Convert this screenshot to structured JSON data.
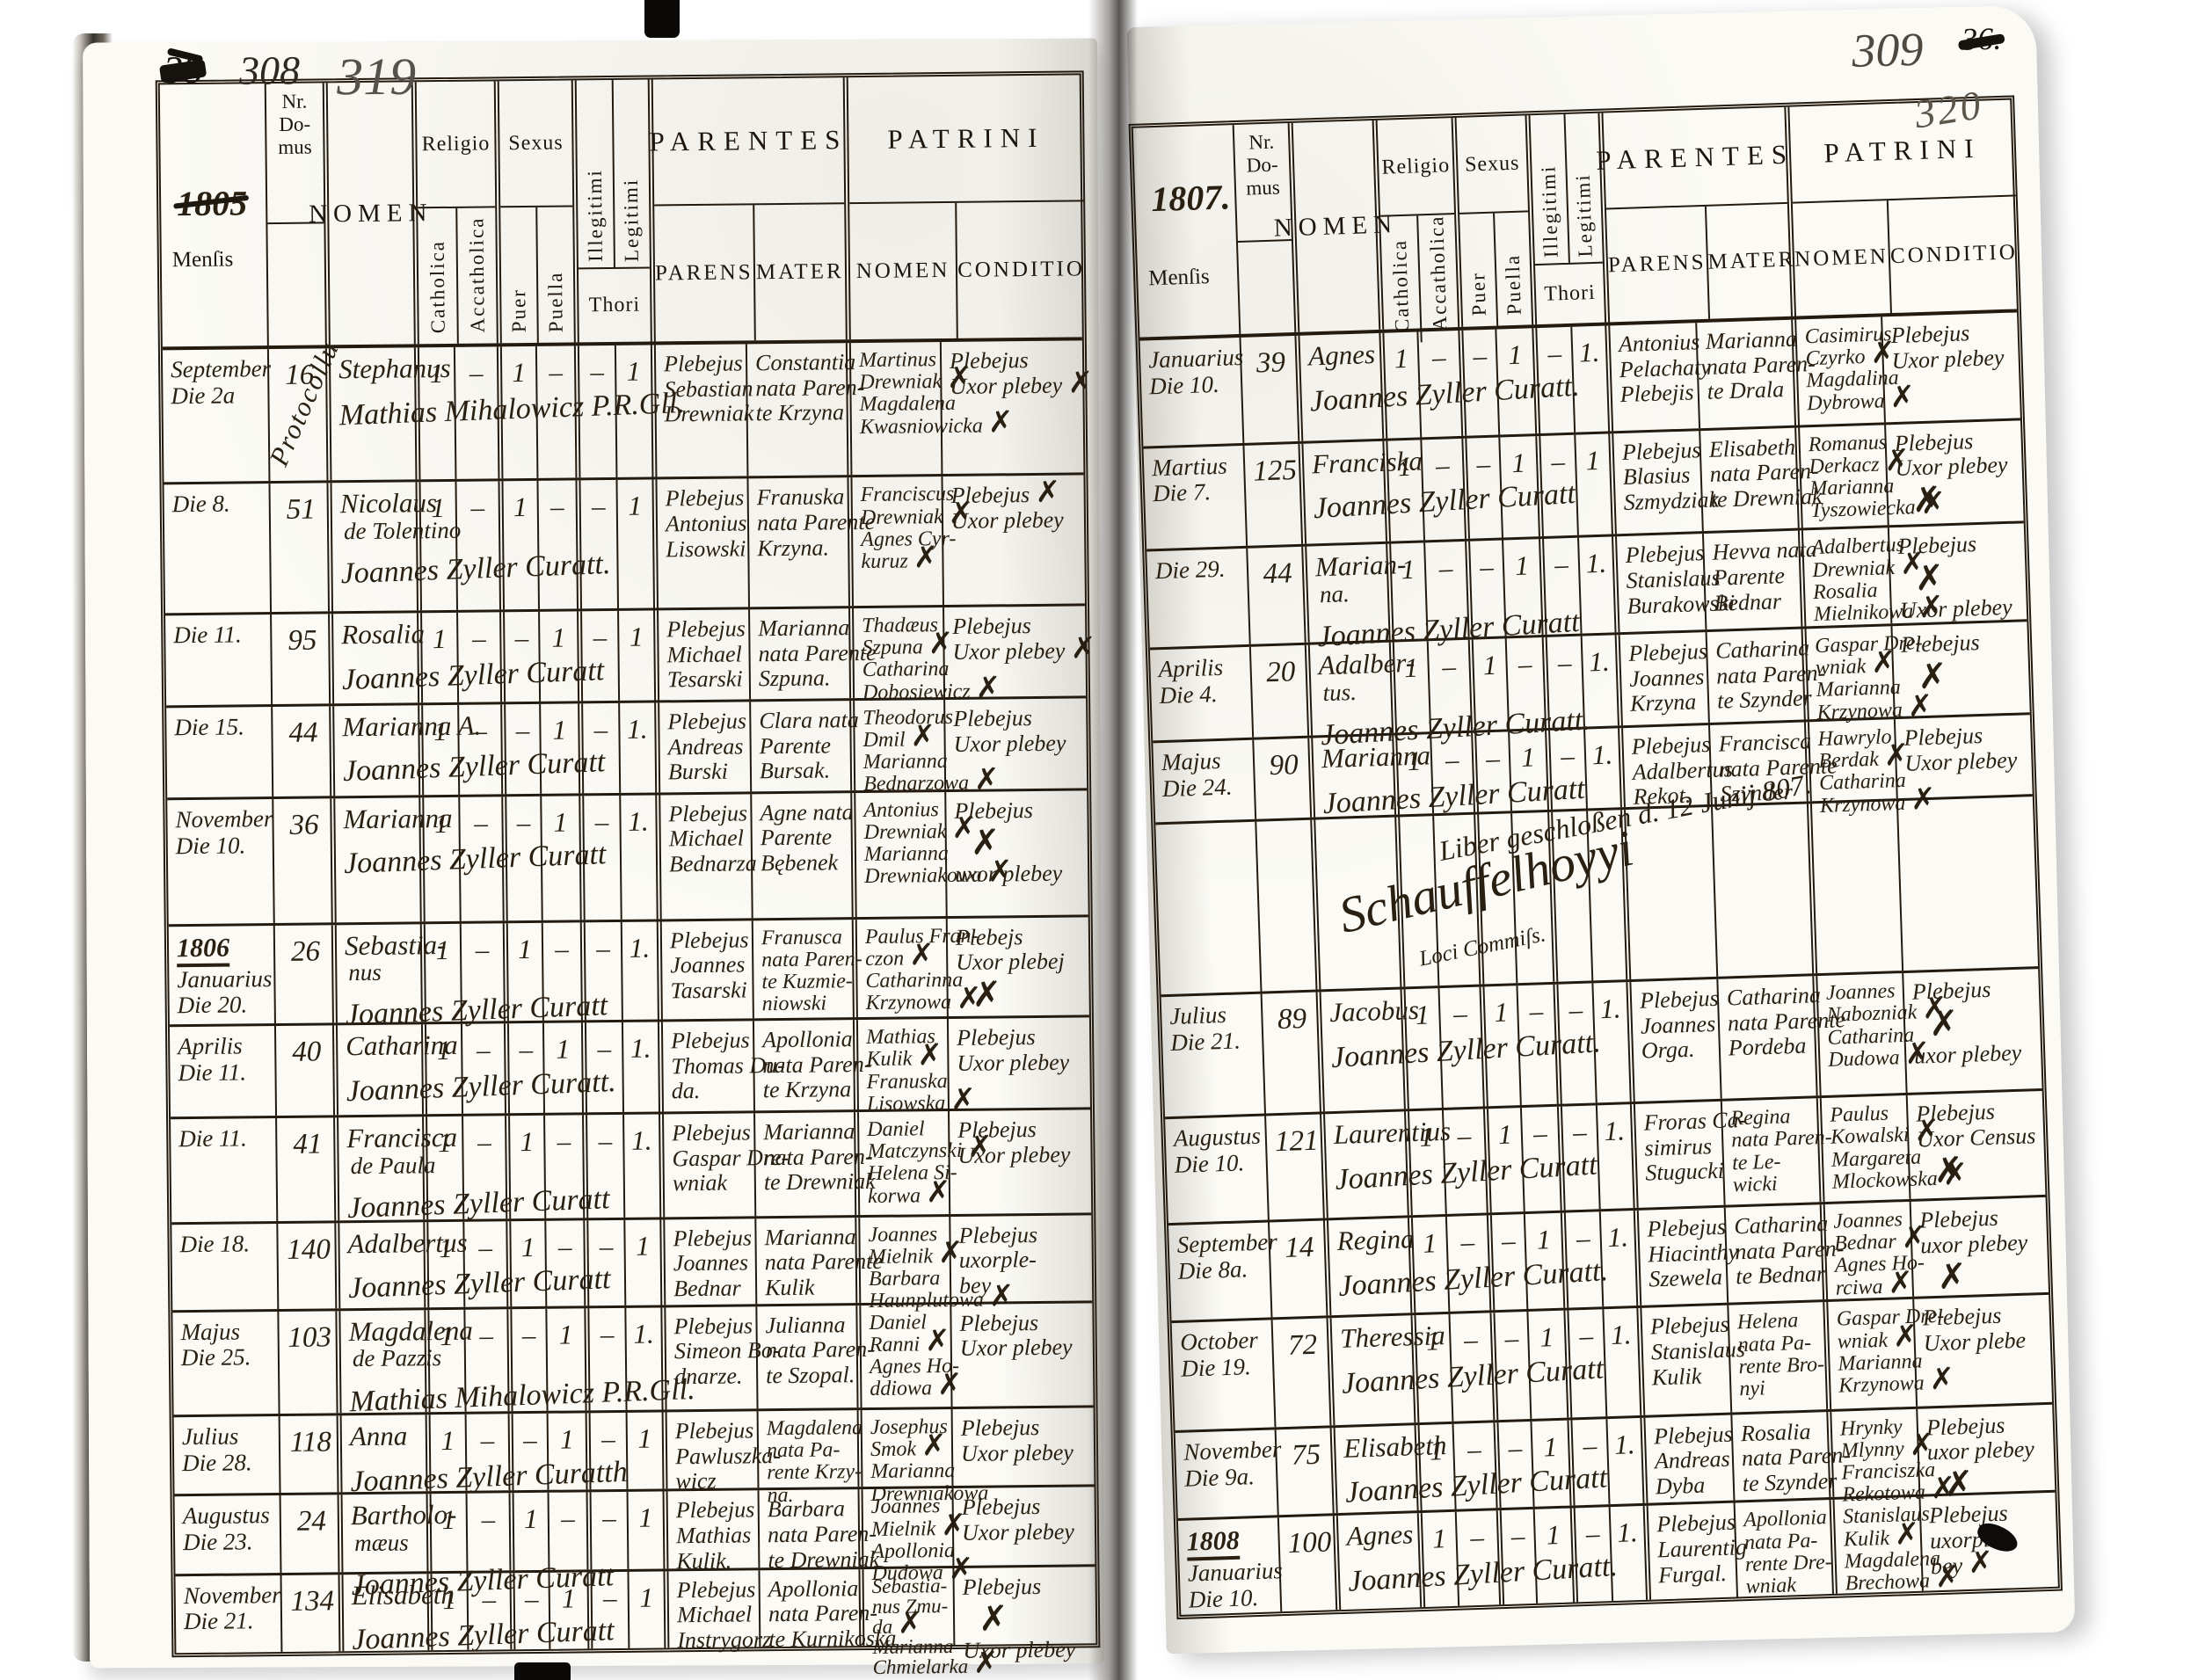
{
  "header_labels": {
    "mensis": "Menſis",
    "nr_domus_lines": [
      "Nr.",
      "Do-",
      "mus"
    ],
    "nomen": "NOMEN",
    "religio": "Religio",
    "catholica": "Catholica",
    "accatholica": "Accatholica",
    "sexus": "Sexus",
    "puer": "Puer",
    "puella": "Puella",
    "illegitimi": "Illegitimi",
    "legitimi": "Legitimi",
    "thori": "Thori",
    "parentes": "PARENTES",
    "parens": "PARENS",
    "mater": "MATER",
    "patrini": "PATRINI",
    "patrini_nomen": "NOMEN",
    "conditio": "CONDITIO"
  },
  "left_page": {
    "year": "1805",
    "column_annotation": "Protocollu",
    "folio_notes": [
      {
        "text": "38",
        "struck": true,
        "size": 44,
        "color": "#17130d"
      },
      {
        "text": "308",
        "struck": false,
        "size": 46,
        "color": "#2e2821"
      },
      {
        "text": "319",
        "struck": false,
        "size": 60,
        "color": "#56514a"
      }
    ],
    "rows": [
      {
        "mensis": [
          "September",
          "Die 2a"
        ],
        "domus": "16",
        "name": "Stephanus",
        "name2": "",
        "curate": "Mathias Mihalowicz P.R.Gll.",
        "marks": [
          "1",
          "–",
          "1",
          "–",
          "–",
          "1"
        ],
        "parens": [
          "Plebejus",
          "Sebastian",
          "Drewniak"
        ],
        "mater": [
          "Constantia",
          "nata Paren-",
          "te Krzyna"
        ],
        "patrini": [
          "Martinus",
          "Drewniak ✗",
          "Magdalena",
          "Kwasniowicka ✗"
        ],
        "conditio": [
          "Plebejus",
          "Uxor plebey ✗"
        ]
      },
      {
        "mensis": [
          "Die 8."
        ],
        "domus": "51",
        "name": "Nicolaus",
        "name2": "de Tolentino",
        "curate": "Joannes Zyller Curatt.",
        "marks": [
          "1",
          "–",
          "1",
          "–",
          "–",
          "1"
        ],
        "parens": [
          "Plebejus",
          "Antonius",
          "Lisowski"
        ],
        "mater": [
          "Franuska",
          "nata Parente",
          "Krzyna."
        ],
        "patrini": [
          "Franciscus",
          "Drewniak ✗",
          "Agnes Cyr-",
          "kuruz ✗"
        ],
        "conditio": [
          "Plebejus ✗",
          "Uxor plebey"
        ]
      },
      {
        "mensis": [
          "Die 11."
        ],
        "domus": "95",
        "name": "Rosalia",
        "name2": "",
        "curate": "Joannes Zyller Curatt",
        "marks": [
          "1",
          "–",
          "–",
          "1",
          "–",
          "1"
        ],
        "parens": [
          "Plebejus",
          "Michael",
          "Tesarski"
        ],
        "mater": [
          "Marianna",
          "nata Parente",
          "Szpuna."
        ],
        "patrini": [
          "Thadæus",
          "Szpuna ✗",
          "Catharina",
          "Dobosiewicz ✗"
        ],
        "conditio": [
          "Plebejus",
          "Uxor plebey ✗"
        ]
      },
      {
        "mensis": [
          "Die 15."
        ],
        "domus": "44",
        "name": "Marianna A.",
        "name2": "",
        "curate": "Joannes Zyller Curatt",
        "marks": [
          "1",
          "–",
          "–",
          "1",
          "–",
          "1."
        ],
        "parens": [
          "Plebejus",
          "Andreas",
          "Burski"
        ],
        "mater": [
          "Clara nata",
          "Parente",
          "Bursak."
        ],
        "patrini": [
          "Theodorus",
          "Dmil ✗",
          "Marianna",
          "Bednarzowa ✗"
        ],
        "conditio": [
          "Plebejus",
          "Uxor plebey"
        ]
      },
      {
        "mensis": [
          "November",
          "Die 10."
        ],
        "domus": "36",
        "name": "Marianna",
        "name2": "",
        "curate": "Joannes Zyller Curatt",
        "marks": [
          "1",
          "–",
          "–",
          "1",
          "–",
          "1."
        ],
        "parens": [
          "Plebejus",
          "Michael",
          "Bednarza"
        ],
        "mater": [
          "Agne nata",
          "Parente",
          "Bębenek"
        ],
        "patrini": [
          "Antonius",
          "Drewniak ✗",
          "Marianna",
          "Drewniakowa ✗"
        ],
        "conditio": [
          "Plebejus",
          "✗",
          "uxor plebey"
        ]
      },
      {
        "mensis": [
          "1806",
          "Januarius",
          "Die 20."
        ],
        "domus": "26",
        "name": "Sebastia-",
        "name2": "nus",
        "curate": "Joannes Zyller Curatt",
        "marks": [
          "1",
          "–",
          "1",
          "–",
          "–",
          "1."
        ],
        "parens": [
          "Plebejus",
          "Joannes",
          "Tasarski"
        ],
        "mater": [
          "Franusca",
          "nata Paren-",
          "te Kuzmie-",
          "niowski"
        ],
        "patrini": [
          "Paulus Fran-",
          "czon ✗",
          "Catharinna",
          "Krzynowa ✗"
        ],
        "conditio": [
          "Plebejs",
          "Uxor plebej",
          "✗"
        ]
      },
      {
        "mensis": [
          "Aprilis",
          "Die 11."
        ],
        "domus": "40",
        "name": "Catharina",
        "name2": "",
        "curate": "Joannes Zyller Curatt.",
        "marks": [
          "1",
          "–",
          "–",
          "1",
          "–",
          "1."
        ],
        "parens": [
          "Plebejus",
          "Thomas Du-",
          "da."
        ],
        "mater": [
          "Apollonia",
          "nata Paren-",
          "te Krzyna"
        ],
        "patrini": [
          "Mathias",
          "Kulik ✗",
          "Franuska",
          "Lisowska ✗"
        ],
        "conditio": [
          "Plebejus",
          "Uxor plebey"
        ]
      },
      {
        "mensis": [
          "Die 11."
        ],
        "domus": "41",
        "name": "Francisca",
        "name2": "de Paula",
        "curate": "Joannes Zyller Curatt",
        "marks": [
          "1",
          "–",
          "1",
          "–",
          "–",
          "1."
        ],
        "parens": [
          "Plebejus",
          "Gaspar Dre-",
          "wniak"
        ],
        "mater": [
          "Marianna",
          "nata Paren-",
          "te Drewniak"
        ],
        "patrini": [
          "Daniel",
          "Matczynski ✗",
          "Helena Si-",
          "korwa ✗"
        ],
        "conditio": [
          "Plebejus",
          "Uxor plebey"
        ]
      },
      {
        "mensis": [
          "Die 18."
        ],
        "domus": "140",
        "name": "Adalbertus",
        "name2": "",
        "curate": "Joannes Zyller Curatt",
        "marks": [
          "1",
          "–",
          "1",
          "–",
          "–",
          "1"
        ],
        "parens": [
          "Plebejus",
          "Joannes",
          "Bednar"
        ],
        "mater": [
          "Marianna",
          "nata Parente",
          "Kulik"
        ],
        "patrini": [
          "Joannes",
          "Mielnik ✗",
          "Barbara",
          "Haunplutowa ✗"
        ],
        "conditio": [
          "Plebejus",
          "uxorple-",
          "bey"
        ]
      },
      {
        "mensis": [
          "Majus",
          "Die 25."
        ],
        "domus": "103",
        "name": "Magdalena",
        "name2": "de Pazzis",
        "curate": "Mathias Mihalowicz P.R.Gll.",
        "marks": [
          "1",
          "–",
          "–",
          "1",
          "–",
          "1."
        ],
        "parens": [
          "Plebejus",
          "Simeon Bo-",
          "dnarze."
        ],
        "mater": [
          "Julianna",
          "nata Paren-",
          "te Szopal."
        ],
        "patrini": [
          "Daniel",
          "Ranni ✗",
          "Agnes Ho-",
          "ddiowa ✗"
        ],
        "conditio": [
          "Plebejus",
          "Uxor plebey"
        ]
      },
      {
        "mensis": [
          "Julius",
          "Die 28."
        ],
        "domus": "118",
        "name": "Anna",
        "name2": "",
        "curate": "Joannes Zyller Curatth",
        "marks": [
          "1",
          "–",
          "–",
          "1",
          "–",
          "1"
        ],
        "parens": [
          "Plebejus",
          "Pawluszka-",
          "wicz"
        ],
        "mater": [
          "Magdalena",
          "nata Pa-",
          "rente Krzy-",
          "na."
        ],
        "patrini": [
          "Josephus",
          "Smok ✗",
          "Marianna",
          "Drewniakowa"
        ],
        "conditio": [
          "Plebejus",
          "Uxor plebey"
        ]
      },
      {
        "mensis": [
          "Augustus",
          "Die 23."
        ],
        "domus": "24",
        "name": "Bartholo-",
        "name2": "mæus",
        "curate": "Joannes Zyller Curatt",
        "marks": [
          "1",
          "–",
          "1",
          "–",
          "–",
          "1"
        ],
        "parens": [
          "Plebejus",
          "Mathias",
          "Kulik."
        ],
        "mater": [
          "Barbara",
          "nata Paren-",
          "te Drewniak"
        ],
        "patrini": [
          "Joannes",
          "Mielnik ✗",
          "Apollonia",
          "Dudowa ✗"
        ],
        "conditio": [
          "Plebejus",
          "Uxor plebey"
        ]
      },
      {
        "mensis": [
          "November",
          "Die 21."
        ],
        "domus": "134",
        "name": "Elisabeth",
        "name2": "",
        "curate": "Joannes Zyller Curatt",
        "marks": [
          "1",
          "–",
          "–",
          "1",
          "–",
          "1"
        ],
        "parens": [
          "Plebejus",
          "Michael",
          "Instrygorz"
        ],
        "mater": [
          "Apollonia",
          "nata Paren-",
          "te Kurnikoska"
        ],
        "patrini": [
          "Sebastia-",
          "nus Zmu-",
          "da ✗",
          "Marianna",
          "Chmielarka ✗"
        ],
        "conditio": [
          "Plebejus",
          "✗",
          "Uxor plebey"
        ]
      }
    ]
  },
  "right_page": {
    "year": "1807.",
    "conditio_folio": "320",
    "folio_notes": [
      {
        "text": "309",
        "struck": false,
        "size": 54,
        "color": "#4e483f"
      },
      {
        "text": "36.",
        "struck": true,
        "size": 36,
        "color": "#17130d"
      }
    ],
    "closing_note": {
      "line": "Liber geschloßen d. 12 Junij 807.",
      "signature": "Schauffelhoyyi",
      "signature_sub": "Loci Commiſs."
    },
    "rows": [
      {
        "mensis": [
          "Januarius",
          "Die 10."
        ],
        "domus": "39",
        "name": "Agnes",
        "name2": "",
        "curate": "Joannes Zyller Curatt.",
        "marks": [
          "1",
          "–",
          "–",
          "1",
          "–",
          "1."
        ],
        "parens": [
          "Antonius",
          "Pelachaty",
          "Plebejis"
        ],
        "mater": [
          "Marianna",
          "nata Paren-",
          "te Drala"
        ],
        "patrini": [
          "Casimirus",
          "Czyrko ✗",
          "Magdalina",
          "Dybrowa ✗"
        ],
        "conditio": [
          "Plebejus",
          "Uxor plebey"
        ]
      },
      {
        "mensis": [
          "Martius",
          "Die 7."
        ],
        "domus": "125",
        "name": "Franciska",
        "name2": "",
        "curate": "Joannes Zyller Curatt",
        "marks": [
          "1",
          "–",
          "–",
          "1",
          "–",
          "1"
        ],
        "parens": [
          "Plebejus",
          "Blasius",
          "Szmydziak"
        ],
        "mater": [
          "Elisabeth",
          "nata Paren-",
          "te Drewniak"
        ],
        "patrini": [
          "Romanus",
          "Derkacz ✗",
          "Marianna",
          "Tyszowiecka ✗"
        ],
        "conditio": [
          "Plebejus",
          "Uxor plebey",
          "✗"
        ]
      },
      {
        "mensis": [
          "Die 29."
        ],
        "domus": "44",
        "name": "Marian-",
        "name2": "na.",
        "curate": "Joannes Zyller Curatt",
        "marks": [
          "1",
          "–",
          "–",
          "1",
          "–",
          "1."
        ],
        "parens": [
          "Plebejus",
          "Stanislaus",
          "Burakowski"
        ],
        "mater": [
          "Hevva nata",
          "Parente",
          "Bednar"
        ],
        "patrini": [
          "Adalbertus",
          "Drewniak ✗",
          "Rosalia",
          "Mielnikowa ✗"
        ],
        "conditio": [
          "Plebejus",
          "✗",
          "Uxor plebey"
        ]
      },
      {
        "mensis": [
          "Aprilis",
          "Die 4."
        ],
        "domus": "20",
        "name": "Adalber-",
        "name2": "tus.",
        "curate": "Joannes Zyller Curatt.",
        "marks": [
          "1",
          "–",
          "1",
          "–",
          "–",
          "1."
        ],
        "parens": [
          "Plebejus",
          "Joannes",
          "Krzyna"
        ],
        "mater": [
          "Catharina",
          "nata Paren-",
          "te Szynder"
        ],
        "patrini": [
          "Gaspar Dre-",
          "wniak ✗",
          "Marianna",
          "Krzynowa ✗"
        ],
        "conditio": [
          "Plebejus",
          "✗"
        ]
      },
      {
        "mensis": [
          "Majus",
          "Die 24."
        ],
        "domus": "90",
        "name": "Marianna",
        "name2": "",
        "curate": "Joannes Zyller Curatt",
        "marks": [
          "1",
          "–",
          "–",
          "1",
          "–",
          "1."
        ],
        "parens": [
          "Plebejus",
          "Adalbertus",
          "Rekot."
        ],
        "mater": [
          "Francisca",
          "nata Parente",
          "Szynder"
        ],
        "patrini": [
          "Hawrylo",
          "Berdak ✗",
          "Catharina",
          "Krzynowa ✗"
        ],
        "conditio": [
          "Plebejus",
          "Uxor plebey"
        ]
      },
      {
        "note": true
      },
      {
        "mensis": [
          "Julius",
          "Die 21."
        ],
        "domus": "89",
        "name": "Jacobus",
        "name2": "",
        "curate": "Joannes Zyller Curatt.",
        "marks": [
          "1",
          "–",
          "1",
          "–",
          "–",
          "1."
        ],
        "parens": [
          "Plebejus",
          "Joannes",
          "Orga."
        ],
        "mater": [
          "Catharina",
          "nata Parente",
          "Pordeba"
        ],
        "patrini": [
          "Joannes",
          "Nabozniak ✗",
          "Catharina",
          "Dudowa ✗"
        ],
        "conditio": [
          "Plebejus",
          "✗",
          "uxor plebey"
        ]
      },
      {
        "mensis": [
          "Augustus",
          "Die 10."
        ],
        "domus": "121",
        "name": "Laurentius",
        "name2": "",
        "curate": "Joannes Zyller Curatt",
        "marks": [
          "1",
          "–",
          "1",
          "–",
          "–",
          "1."
        ],
        "parens": [
          "Froras Ca-",
          "simirus",
          "Stugucki"
        ],
        "mater": [
          "Regina",
          "nata Paren-",
          "te Le-",
          "wicki"
        ],
        "patrini": [
          "Paulus",
          "Kowalski ✗",
          "Margareta",
          "Mlockowska ✗"
        ],
        "conditio": [
          "Plebejus",
          "Uxor Census",
          "✗"
        ]
      },
      {
        "mensis": [
          "September",
          "Die 8a."
        ],
        "domus": "14",
        "name": "Regina",
        "name2": "",
        "curate": "Joannes Zyller Curatt.",
        "marks": [
          "1",
          "–",
          "–",
          "1",
          "–",
          "1."
        ],
        "parens": [
          "Plebejus",
          "Hiacinthy",
          "Szewela"
        ],
        "mater": [
          "Catharina",
          "nata Paren-",
          "te Bednar"
        ],
        "patrini": [
          "Joannes",
          "Bednar ✗",
          "Agnes Ho-",
          "rciwa ✗"
        ],
        "conditio": [
          "Plebejus",
          "uxor plebey",
          "✗"
        ]
      },
      {
        "mensis": [
          "October",
          "Die 19."
        ],
        "domus": "72",
        "name": "Theressia",
        "name2": "",
        "curate": "Joannes Zyller Curatt",
        "marks": [
          "1",
          "–",
          "–",
          "1",
          "–",
          "1."
        ],
        "parens": [
          "Plebejus",
          "Stanislaus",
          "Kulik"
        ],
        "mater": [
          "Helena",
          "nata Pa-",
          "rente Bro-",
          "nyi"
        ],
        "patrini": [
          "Gaspar Dre-",
          "wniak ✗",
          "Marianna",
          "Krzynowa ✗"
        ],
        "conditio": [
          "Plebejus",
          "Uxor plebe"
        ]
      },
      {
        "mensis": [
          "November",
          "Die 9a."
        ],
        "domus": "75",
        "name": "Elisabeth",
        "name2": "",
        "curate": "Joannes Zyller Curatt",
        "marks": [
          "1",
          "–",
          "–",
          "1",
          "–",
          "1."
        ],
        "parens": [
          "Plebejus",
          "Andreas",
          "Dyba"
        ],
        "mater": [
          "Rosalia",
          "nata Paren-",
          "te Szynder"
        ],
        "patrini": [
          "Hrynky",
          "Mlynny ✗",
          "Franciszka",
          "Rekotowa ✗"
        ],
        "conditio": [
          "Plebejus",
          "uxor plebey",
          "✗"
        ]
      },
      {
        "mensis": [
          "1808",
          "Januarius",
          "Die 10."
        ],
        "domus": "100",
        "name": "Agnes",
        "name2": "",
        "curate": "Joannes Zyller Curatt.",
        "marks": [
          "1",
          "–",
          "–",
          "1",
          "–",
          "1."
        ],
        "parens": [
          "Plebejus",
          "Laurentig",
          "Furgal."
        ],
        "mater": [
          "Apollonia",
          "nata Pa-",
          "rente Dre-",
          "wniak"
        ],
        "patrini": [
          "Stanislaus",
          "Kulik ✗",
          "Magdalena",
          "Brechowa ✗"
        ],
        "conditio": [
          "Plebejus",
          "uxorple-",
          "bey ✗"
        ]
      }
    ]
  }
}
